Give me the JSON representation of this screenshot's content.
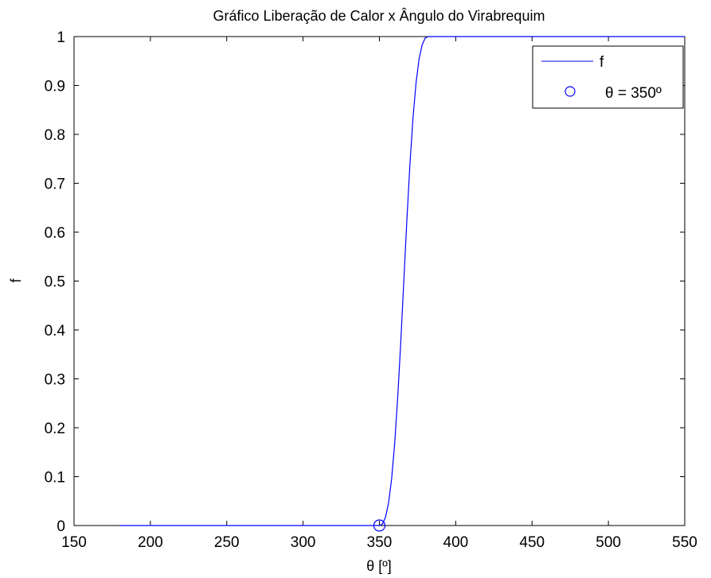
{
  "chart_data": {
    "type": "line",
    "title": "Gráfico Liberação de Calor x Ângulo do Virabrequim",
    "xlabel": "θ [º]",
    "ylabel": "f",
    "xlim": [
      150,
      550
    ],
    "ylim": [
      0,
      1
    ],
    "xticks": [
      150,
      200,
      250,
      300,
      350,
      400,
      450,
      500,
      550
    ],
    "yticks": [
      0,
      0.1,
      0.2,
      0.3,
      0.4,
      0.5,
      0.6,
      0.7,
      0.8,
      0.9,
      1
    ],
    "grid": false,
    "legend_position": "top-right",
    "series": [
      {
        "name": "f",
        "style": "line",
        "color": "#0000ff",
        "x": [
          180,
          350,
          352,
          354,
          356,
          358,
          360,
          362,
          364,
          366,
          368,
          370,
          372,
          374,
          376,
          378,
          380,
          382,
          384,
          386,
          388,
          390,
          392,
          550
        ],
        "y": [
          0,
          0,
          0.003,
          0.017,
          0.046,
          0.095,
          0.167,
          0.262,
          0.375,
          0.5,
          0.625,
          0.738,
          0.833,
          0.905,
          0.954,
          0.983,
          0.997,
          1,
          1,
          1,
          1,
          1,
          1,
          1
        ]
      },
      {
        "name": "θ = 350º",
        "style": "marker-circle",
        "color": "#0000ff",
        "x": [
          350
        ],
        "y": [
          0
        ]
      }
    ]
  }
}
